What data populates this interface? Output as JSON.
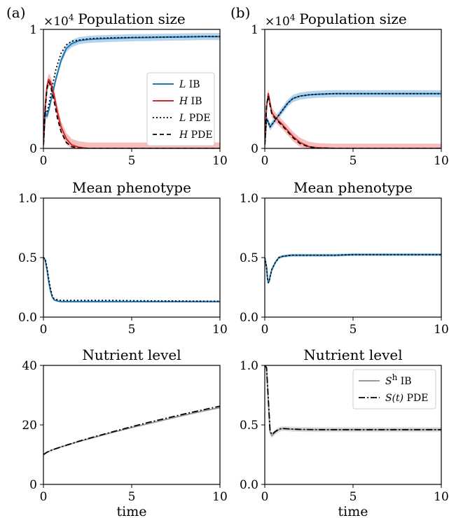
{
  "panel_labels": [
    "(a)",
    "(b)"
  ],
  "xlabel": "time",
  "colors": {
    "L": "#1f77b4",
    "H": "#d62728",
    "S_ib": "#999999",
    "pde": "#000000"
  },
  "chart_data": [
    {
      "id": "a-pop",
      "type": "line",
      "title": "Population size",
      "ylim": [
        0,
        1
      ],
      "yticks": [
        "0",
        "1"
      ],
      "yticks_v": [
        0,
        1
      ],
      "multiplier": {
        "base": "×10",
        "exp": "4"
      },
      "xlim": [
        0,
        10
      ],
      "xticks": [
        "0",
        "5",
        "10"
      ],
      "xticks_v": [
        0,
        5,
        10
      ],
      "series": [
        {
          "name": "L IB",
          "style": "ib",
          "color": "#1f77b4",
          "band": 0.03,
          "x": [
            0,
            0.1,
            0.2,
            0.3,
            0.5,
            0.7,
            1,
            1.3,
            1.6,
            2,
            2.5,
            3,
            4,
            5,
            6,
            7,
            8,
            9,
            10
          ],
          "y": [
            0.03,
            0.3,
            0.27,
            0.32,
            0.45,
            0.58,
            0.74,
            0.84,
            0.88,
            0.905,
            0.915,
            0.92,
            0.925,
            0.93,
            0.932,
            0.935,
            0.937,
            0.94,
            0.94
          ]
        },
        {
          "name": "H IB",
          "style": "ib",
          "color": "#d62728",
          "band": 0.05,
          "x": [
            0,
            0.1,
            0.2,
            0.3,
            0.4,
            0.6,
            0.8,
            1,
            1.3,
            1.6,
            2,
            2.5,
            3,
            4,
            5,
            10
          ],
          "y": [
            0.03,
            0.35,
            0.52,
            0.58,
            0.56,
            0.45,
            0.3,
            0.18,
            0.08,
            0.03,
            0.01,
            0,
            0,
            0,
            0,
            0
          ]
        },
        {
          "name": "L PDE",
          "style": "dotted",
          "color": "#000000",
          "x": [
            0,
            0.1,
            0.2,
            0.3,
            0.5,
            0.7,
            1,
            1.3,
            1.6,
            2,
            2.5,
            3,
            4,
            5,
            6,
            7,
            8,
            9,
            10
          ],
          "y": [
            0.03,
            0.32,
            0.3,
            0.36,
            0.52,
            0.66,
            0.8,
            0.87,
            0.9,
            0.91,
            0.92,
            0.925,
            0.93,
            0.932,
            0.934,
            0.936,
            0.938,
            0.94,
            0.94
          ]
        },
        {
          "name": "H PDE",
          "style": "dashed",
          "color": "#000000",
          "x": [
            0,
            0.1,
            0.2,
            0.3,
            0.4,
            0.6,
            0.8,
            1,
            1.3,
            1.6,
            2,
            2.5,
            3,
            5,
            10
          ],
          "y": [
            0.03,
            0.33,
            0.5,
            0.56,
            0.53,
            0.4,
            0.25,
            0.14,
            0.05,
            0.015,
            0.003,
            0,
            0,
            0,
            0
          ]
        }
      ],
      "legend": {
        "position": "center-right",
        "entries": [
          {
            "var": "L",
            "text": " IB",
            "style": "ib",
            "color": "#1f77b4"
          },
          {
            "var": "H",
            "text": " IB",
            "style": "ib",
            "color": "#d62728"
          },
          {
            "var": "L",
            "text": " PDE",
            "style": "dotted",
            "color": "#000000"
          },
          {
            "var": "H",
            "text": " PDE",
            "style": "dashed",
            "color": "#000000"
          }
        ]
      }
    },
    {
      "id": "b-pop",
      "type": "line",
      "title": "Population size",
      "ylim": [
        0,
        1
      ],
      "yticks": [
        "0",
        "1"
      ],
      "yticks_v": [
        0,
        1
      ],
      "multiplier": {
        "base": "×10",
        "exp": "4"
      },
      "xlim": [
        0,
        10
      ],
      "xticks": [
        "0",
        "5",
        "10"
      ],
      "xticks_v": [
        0,
        5,
        10
      ],
      "series": [
        {
          "name": "L IB",
          "style": "ib",
          "color": "#1f77b4",
          "band": 0.03,
          "x": [
            0,
            0.1,
            0.2,
            0.3,
            0.4,
            0.6,
            0.8,
            1,
            1.3,
            1.6,
            2,
            2.5,
            3,
            4,
            5,
            6,
            7,
            8,
            9,
            10
          ],
          "y": [
            0.03,
            0.25,
            0.22,
            0.18,
            0.2,
            0.24,
            0.28,
            0.32,
            0.38,
            0.42,
            0.44,
            0.45,
            0.455,
            0.46,
            0.46,
            0.46,
            0.46,
            0.46,
            0.46,
            0.46
          ]
        },
        {
          "name": "H IB",
          "style": "ib",
          "color": "#d62728",
          "band": 0.04,
          "x": [
            0,
            0.1,
            0.2,
            0.3,
            0.4,
            0.6,
            0.8,
            1,
            1.3,
            1.6,
            2,
            2.5,
            3,
            4,
            5,
            10
          ],
          "y": [
            0.03,
            0.35,
            0.46,
            0.38,
            0.3,
            0.26,
            0.23,
            0.2,
            0.15,
            0.1,
            0.05,
            0.015,
            0.005,
            0,
            0,
            0
          ]
        },
        {
          "name": "L PDE",
          "style": "dotted",
          "color": "#000000",
          "x": [
            0,
            0.1,
            0.2,
            0.3,
            0.4,
            0.6,
            0.8,
            1,
            1.3,
            1.6,
            2,
            2.5,
            3,
            4,
            5,
            6,
            7,
            8,
            9,
            10
          ],
          "y": [
            0.03,
            0.25,
            0.22,
            0.18,
            0.2,
            0.24,
            0.28,
            0.32,
            0.38,
            0.42,
            0.44,
            0.45,
            0.455,
            0.46,
            0.46,
            0.46,
            0.46,
            0.46,
            0.46,
            0.46
          ]
        },
        {
          "name": "H PDE",
          "style": "dashed",
          "color": "#000000",
          "x": [
            0,
            0.1,
            0.2,
            0.3,
            0.4,
            0.6,
            0.8,
            1,
            1.3,
            1.6,
            2,
            2.5,
            3,
            4,
            5,
            10
          ],
          "y": [
            0.03,
            0.36,
            0.44,
            0.36,
            0.29,
            0.25,
            0.22,
            0.19,
            0.14,
            0.09,
            0.04,
            0.012,
            0.003,
            0,
            0,
            0
          ]
        }
      ]
    },
    {
      "id": "a-phen",
      "type": "line",
      "title": "Mean phenotype",
      "ylim": [
        0,
        1
      ],
      "yticks": [
        "0.0",
        "0.5",
        "1.0"
      ],
      "yticks_v": [
        0,
        0.5,
        1
      ],
      "xlim": [
        0,
        10
      ],
      "xticks": [
        "0",
        "5",
        "10"
      ],
      "xticks_v": [
        0,
        5,
        10
      ],
      "series": [
        {
          "name": "L IB",
          "style": "ib",
          "color": "#1f77b4",
          "band": 0.008,
          "x": [
            0,
            0.1,
            0.2,
            0.3,
            0.4,
            0.5,
            0.6,
            0.8,
            1,
            2,
            3,
            4,
            5,
            6,
            7,
            8,
            9,
            10
          ],
          "y": [
            0.5,
            0.48,
            0.4,
            0.3,
            0.22,
            0.17,
            0.145,
            0.135,
            0.13,
            0.13,
            0.13,
            0.13,
            0.13,
            0.13,
            0.13,
            0.13,
            0.13,
            0.13
          ]
        },
        {
          "name": "L PDE",
          "style": "dotted",
          "color": "#000000",
          "x": [
            0,
            0.1,
            0.2,
            0.3,
            0.4,
            0.5,
            0.6,
            0.8,
            1,
            2,
            3,
            4,
            5,
            6,
            7,
            8,
            9,
            10
          ],
          "y": [
            0.5,
            0.49,
            0.42,
            0.32,
            0.24,
            0.18,
            0.155,
            0.145,
            0.14,
            0.14,
            0.14,
            0.14,
            0.138,
            0.137,
            0.136,
            0.135,
            0.134,
            0.133
          ]
        }
      ]
    },
    {
      "id": "b-phen",
      "type": "line",
      "title": "Mean phenotype",
      "ylim": [
        0,
        1
      ],
      "yticks": [
        "0.0",
        "0.5",
        "1.0"
      ],
      "yticks_v": [
        0,
        0.5,
        1
      ],
      "xlim": [
        0,
        10
      ],
      "xticks": [
        "0",
        "5",
        "10"
      ],
      "xticks_v": [
        0,
        5,
        10
      ],
      "series": [
        {
          "name": "L IB",
          "style": "ib",
          "color": "#1f77b4",
          "band": 0.012,
          "x": [
            0,
            0.1,
            0.15,
            0.2,
            0.25,
            0.3,
            0.4,
            0.6,
            0.8,
            1,
            1.5,
            2,
            3,
            4,
            5,
            6,
            7,
            8,
            9,
            10
          ],
          "y": [
            0.5,
            0.42,
            0.33,
            0.29,
            0.3,
            0.34,
            0.4,
            0.46,
            0.5,
            0.51,
            0.52,
            0.52,
            0.52,
            0.52,
            0.525,
            0.525,
            0.525,
            0.525,
            0.525,
            0.525
          ]
        },
        {
          "name": "L PDE",
          "style": "dotted",
          "color": "#000000",
          "x": [
            0,
            0.1,
            0.15,
            0.2,
            0.25,
            0.3,
            0.4,
            0.6,
            0.8,
            1,
            1.5,
            2,
            3,
            4,
            5,
            6,
            7,
            8,
            9,
            10
          ],
          "y": [
            0.5,
            0.42,
            0.33,
            0.29,
            0.3,
            0.34,
            0.4,
            0.46,
            0.5,
            0.51,
            0.52,
            0.52,
            0.52,
            0.52,
            0.525,
            0.525,
            0.525,
            0.525,
            0.525,
            0.525
          ]
        }
      ]
    },
    {
      "id": "a-nut",
      "type": "line",
      "title": "Nutrient level",
      "ylim": [
        0,
        40
      ],
      "yticks": [
        "0",
        "20",
        "40"
      ],
      "yticks_v": [
        0,
        20,
        40
      ],
      "xlim": [
        0,
        10
      ],
      "xticks": [
        "0",
        "5",
        "10"
      ],
      "xticks_v": [
        0,
        5,
        10
      ],
      "series": [
        {
          "name": "S^h IB",
          "style": "gray",
          "color": "#999999",
          "x": [
            0,
            0.1,
            0.2,
            0.5,
            1,
            2,
            3,
            4,
            5,
            6,
            7,
            8,
            9,
            10
          ],
          "y": [
            10,
            10.4,
            10.8,
            11.6,
            12.6,
            14.4,
            16.0,
            17.6,
            19.1,
            20.5,
            21.9,
            23.3,
            24.6,
            25.8
          ]
        },
        {
          "name": "S(t) PDE",
          "style": "dashdot",
          "color": "#000000",
          "x": [
            0,
            0.1,
            0.2,
            0.5,
            1,
            2,
            3,
            4,
            5,
            6,
            7,
            8,
            9,
            10
          ],
          "y": [
            10,
            10.4,
            10.8,
            11.6,
            12.6,
            14.5,
            16.2,
            17.8,
            19.4,
            20.9,
            22.3,
            23.7,
            25.0,
            26.3
          ]
        }
      ]
    },
    {
      "id": "b-nut",
      "type": "line",
      "title": "Nutrient level",
      "ylim": [
        0,
        1
      ],
      "yticks": [
        "0.0",
        "0.5",
        "1.0"
      ],
      "yticks_v": [
        0,
        0.5,
        1
      ],
      "xlim": [
        0,
        10
      ],
      "xticks": [
        "0",
        "5",
        "10"
      ],
      "xticks_v": [
        0,
        5,
        10
      ],
      "series": [
        {
          "name": "S^h IB",
          "style": "grayband",
          "color": "#999999",
          "band": 0.02,
          "x": [
            0,
            0.1,
            0.2,
            0.3,
            0.4,
            0.6,
            0.8,
            1,
            1.5,
            2,
            3,
            4,
            5,
            6,
            7,
            8,
            9,
            10
          ],
          "y": [
            1.0,
            0.98,
            0.7,
            0.44,
            0.41,
            0.44,
            0.46,
            0.47,
            0.465,
            0.462,
            0.46,
            0.46,
            0.46,
            0.46,
            0.46,
            0.46,
            0.46,
            0.46
          ]
        },
        {
          "name": "S(t) PDE",
          "style": "dashdot",
          "color": "#000000",
          "x": [
            0,
            0.1,
            0.2,
            0.3,
            0.4,
            0.6,
            0.8,
            1,
            1.5,
            2,
            3,
            4,
            5,
            6,
            7,
            8,
            9,
            10
          ],
          "y": [
            1.0,
            0.98,
            0.72,
            0.45,
            0.42,
            0.445,
            0.465,
            0.47,
            0.465,
            0.462,
            0.46,
            0.46,
            0.46,
            0.46,
            0.46,
            0.46,
            0.46,
            0.46
          ]
        }
      ],
      "legend": {
        "position": "top-right",
        "entries": [
          {
            "var": "S",
            "sup": "h",
            "text": " IB",
            "style": "gray",
            "color": "#999999"
          },
          {
            "var": "S",
            "paren": "(t)",
            "text": " PDE",
            "style": "dashdot",
            "color": "#000000"
          }
        ]
      }
    }
  ]
}
